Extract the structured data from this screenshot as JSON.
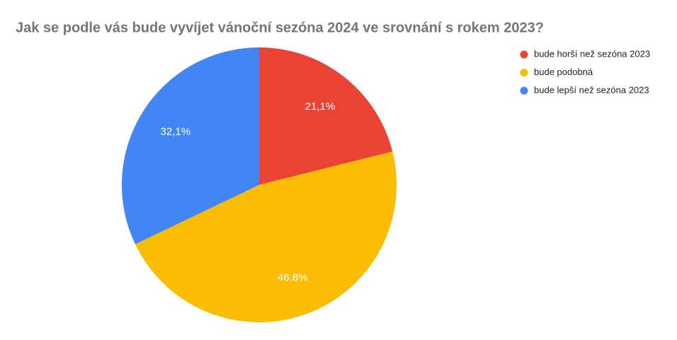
{
  "chart_data": {
    "type": "pie",
    "title": "Jak se podle vás bude vyvíjet vánoční sezóna 2024 ve srovnání s rokem 2023?",
    "categories": [
      "bude horší než sezóna 2023",
      "bude podobná",
      "bude lepší než sezóna 2023"
    ],
    "values": [
      21.1,
      46.8,
      32.1
    ],
    "value_labels": [
      "21,1%",
      "46,8%",
      "32,1%"
    ],
    "colors": [
      "#ea4335",
      "#fbbc04",
      "#4285f4"
    ],
    "legend": "right"
  }
}
